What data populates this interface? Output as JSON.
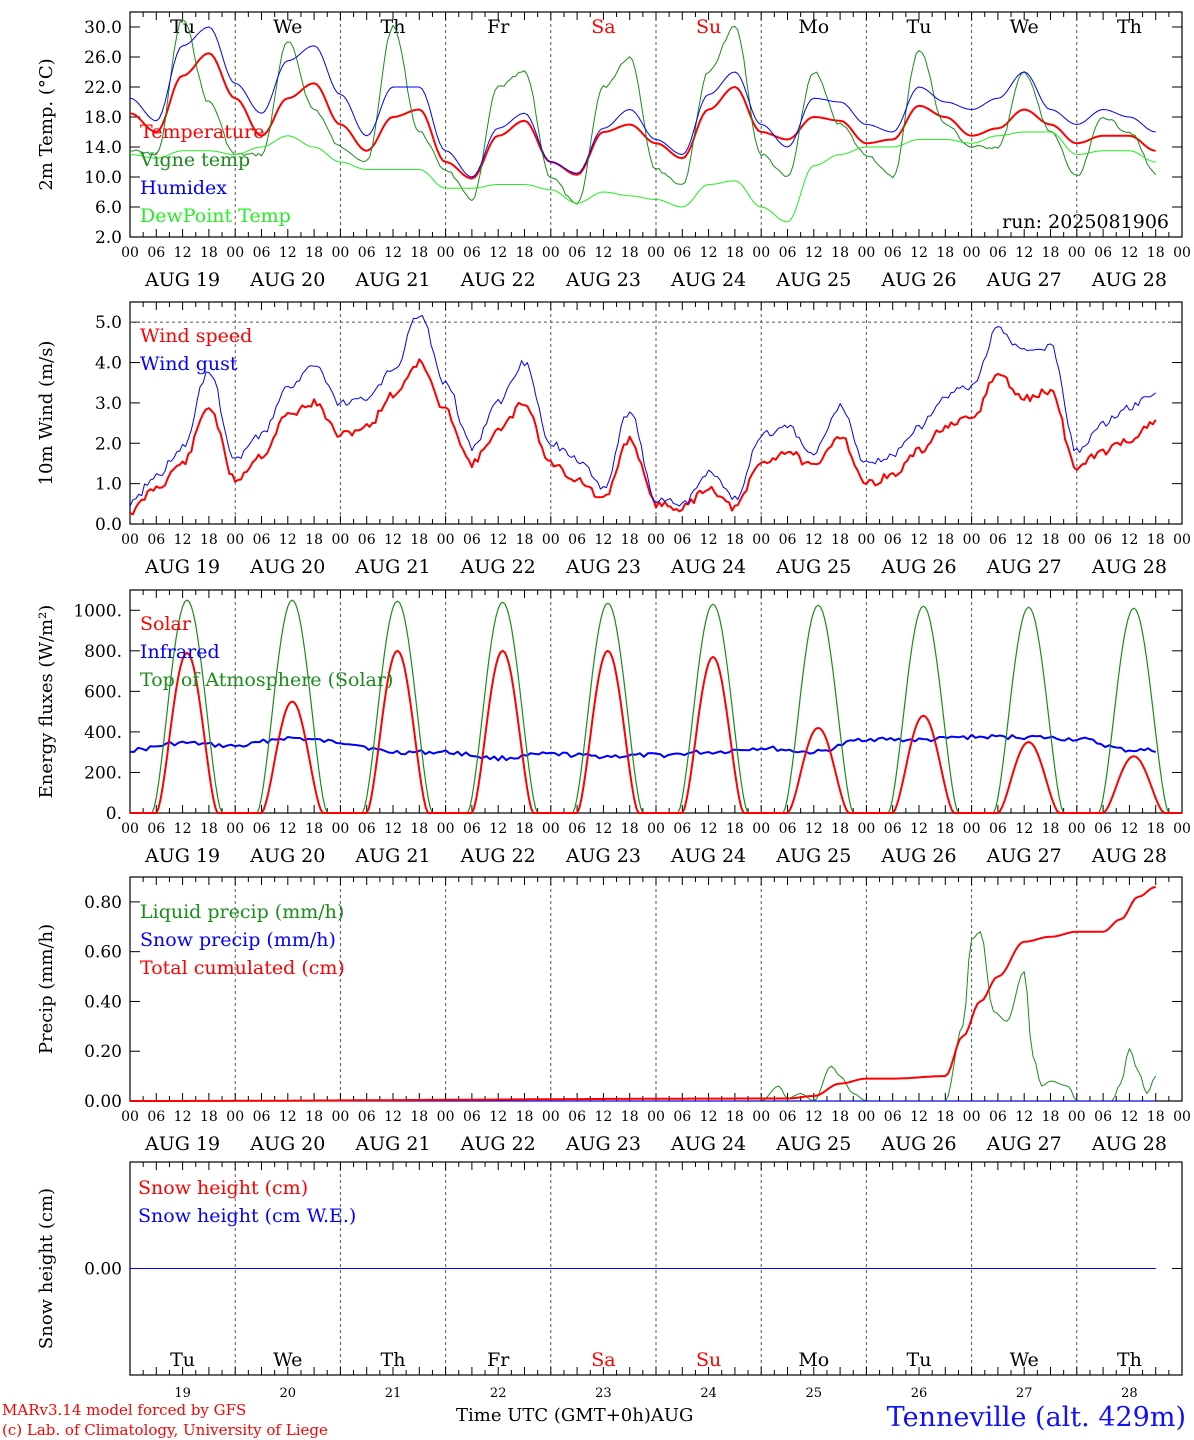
{
  "run": "run: 2025081906",
  "days": {
    "names": [
      "Tu",
      "We",
      "Th",
      "Fr",
      "Sa",
      "Su",
      "Mo",
      "Tu",
      "We",
      "Th"
    ],
    "name_colors": [
      "#000000",
      "#000000",
      "#000000",
      "#000000",
      "#ff0000",
      "#ff0000",
      "#000000",
      "#000000",
      "#000000",
      "#000000"
    ],
    "dates": [
      "AUG 19",
      "AUG 20",
      "AUG 21",
      "AUG 22",
      "AUG 23",
      "AUG 24",
      "AUG 25",
      "AUG 26",
      "AUG 27",
      "AUG 28"
    ],
    "numbers": [
      "19",
      "20",
      "21",
      "22",
      "23",
      "24",
      "25",
      "26",
      "27",
      "28"
    ],
    "hour_ticks": [
      "00",
      "06",
      "12",
      "18"
    ]
  },
  "footer": {
    "credit_line1": "MARv3.14 model forced by GFS",
    "credit_line2": "(c) Lab. of Climatology, University of Liege",
    "axis_title": "Time UTC (GMT+0h)",
    "month": "AUG",
    "station": "Tenneville (alt. 429m)"
  },
  "chart_data": [
    {
      "type": "line",
      "ylabel": "2m Temp. (°C)",
      "ylim": [
        2,
        32
      ],
      "ytick_labels": [
        "2.0",
        "6.0",
        "10.0",
        "14.0",
        "18.0",
        "22.0",
        "26.0",
        "30.0"
      ],
      "ytick_values": [
        2,
        6,
        10,
        14,
        18,
        22,
        26,
        30
      ],
      "x_unit": "hours since 2025-08-19 00 UTC",
      "series": [
        {
          "name": "Temperature",
          "color": "#ff0000",
          "width": 2,
          "x": [
            0,
            6,
            12,
            18,
            24,
            30,
            36,
            42,
            48,
            54,
            60,
            66,
            72,
            78,
            84,
            90,
            96,
            102,
            108,
            114,
            120,
            126,
            132,
            138,
            144,
            150,
            156,
            162,
            168,
            174,
            180,
            186,
            192,
            198,
            204,
            210,
            216,
            222,
            228,
            234
          ],
          "y": [
            18.5,
            16,
            23.5,
            26.5,
            20.5,
            15.5,
            20.5,
            22.5,
            17,
            13.5,
            18,
            19,
            12,
            9.8,
            15.5,
            17.5,
            12,
            10.3,
            16,
            17,
            14.5,
            12.5,
            19,
            22,
            16,
            15,
            18,
            17.5,
            14.5,
            15,
            19.5,
            18,
            15.5,
            16.5,
            19,
            17,
            14.5,
            15.5,
            15.5,
            13.5
          ]
        },
        {
          "name": "Vigne temp",
          "color": "#1a8c1a",
          "width": 1,
          "x": [
            0,
            6,
            12,
            18,
            24,
            30,
            36,
            42,
            48,
            54,
            60,
            66,
            72,
            78,
            84,
            90,
            96,
            102,
            108,
            114,
            120,
            126,
            132,
            138,
            144,
            150,
            156,
            162,
            168,
            174,
            180,
            186,
            192,
            198,
            204,
            210,
            216,
            222,
            228,
            234
          ],
          "y": [
            13.5,
            13,
            31,
            20,
            13,
            13,
            28,
            19,
            14,
            12,
            30,
            16,
            11,
            7,
            22,
            24,
            10,
            6.3,
            22,
            26,
            11,
            9,
            24,
            30,
            13,
            10,
            24,
            17,
            13,
            10,
            27,
            17,
            14,
            14,
            24,
            16,
            10,
            18,
            16,
            10.5
          ]
        },
        {
          "name": "Humidex",
          "color": "#0000ff",
          "width": 1,
          "x": [
            0,
            6,
            12,
            18,
            24,
            30,
            36,
            42,
            48,
            54,
            60,
            66,
            72,
            78,
            84,
            90,
            96,
            102,
            108,
            114,
            120,
            126,
            132,
            138,
            144,
            150,
            156,
            162,
            168,
            174,
            180,
            186,
            192,
            198,
            204,
            210,
            216,
            222,
            228,
            234
          ],
          "y": [
            20.5,
            17.5,
            27.5,
            30,
            22.5,
            18.5,
            25.5,
            27.5,
            21,
            15.5,
            22,
            22,
            13.5,
            10,
            16.5,
            18.5,
            12,
            10.5,
            16.5,
            19,
            15,
            13,
            21,
            24,
            17,
            14,
            20.5,
            20,
            17,
            16,
            22,
            20,
            19,
            20.5,
            24,
            19,
            17,
            19,
            18,
            16
          ]
        },
        {
          "name": "DewPoint Temp",
          "color": "#22ee22",
          "width": 1,
          "x": [
            0,
            6,
            12,
            18,
            24,
            30,
            36,
            42,
            48,
            54,
            60,
            66,
            72,
            78,
            84,
            90,
            96,
            102,
            108,
            114,
            120,
            126,
            132,
            138,
            144,
            150,
            156,
            162,
            168,
            174,
            180,
            186,
            192,
            198,
            204,
            210,
            216,
            222,
            228,
            234
          ],
          "y": [
            13,
            12.5,
            13.5,
            13.5,
            13,
            14,
            15.5,
            14,
            12,
            11,
            11,
            11,
            8.5,
            8.5,
            9,
            9,
            8.3,
            6.5,
            8,
            7.5,
            7,
            6,
            9,
            9.5,
            6,
            4,
            11.5,
            13,
            14,
            14,
            15,
            15,
            14.5,
            15.5,
            16,
            16,
            13,
            13.5,
            13.5,
            12
          ]
        }
      ]
    },
    {
      "type": "line",
      "ylabel": "10m Wind (m/s)",
      "ylim": [
        0,
        5.5
      ],
      "ytick_labels": [
        "0.0",
        "1.0",
        "2.0",
        "3.0",
        "4.0",
        "5.0"
      ],
      "ytick_values": [
        0,
        1,
        2,
        3,
        4,
        5
      ],
      "hline": 5,
      "x_unit": "hours since 2025-08-19 00 UTC",
      "series": [
        {
          "name": "Wind speed",
          "color": "#ff0000",
          "width": 2,
          "x": [
            0,
            6,
            12,
            18,
            24,
            30,
            36,
            42,
            48,
            54,
            60,
            66,
            72,
            78,
            84,
            90,
            96,
            102,
            108,
            114,
            120,
            126,
            132,
            138,
            144,
            150,
            156,
            162,
            168,
            174,
            180,
            186,
            192,
            198,
            204,
            210,
            216,
            222,
            228,
            234
          ],
          "y": [
            0.3,
            0.9,
            1.5,
            2.9,
            1.1,
            1.7,
            2.7,
            3,
            2.2,
            2.4,
            3.2,
            4,
            2.8,
            1.5,
            2.3,
            3,
            1.5,
            1.1,
            0.6,
            2.1,
            0.5,
            0.4,
            0.9,
            0.4,
            1.5,
            1.8,
            1.4,
            2.2,
            1,
            1.2,
            1.8,
            2.4,
            2.6,
            3.7,
            3.1,
            3.3,
            1.4,
            1.8,
            2.1,
            2.5
          ]
        },
        {
          "name": "Wind gust",
          "color": "#0000ff",
          "width": 1,
          "x": [
            0,
            6,
            12,
            18,
            24,
            30,
            36,
            42,
            48,
            54,
            60,
            66,
            72,
            78,
            84,
            90,
            96,
            102,
            108,
            114,
            120,
            126,
            132,
            138,
            144,
            150,
            156,
            162,
            168,
            174,
            180,
            186,
            192,
            198,
            204,
            210,
            216,
            222,
            228,
            234
          ],
          "y": [
            0.5,
            1.2,
            1.9,
            3.8,
            1.6,
            2.2,
            3.4,
            3.9,
            3,
            3.1,
            3.8,
            5.2,
            3.5,
            1.9,
            3,
            4,
            2,
            1.6,
            0.9,
            2.8,
            0.6,
            0.5,
            1.3,
            0.6,
            2.2,
            2.4,
            1.8,
            2.9,
            1.5,
            1.7,
            2.4,
            3.2,
            3.4,
            4.8,
            4.3,
            4.4,
            1.8,
            2.5,
            2.9,
            3.2
          ]
        }
      ]
    },
    {
      "type": "line",
      "ylabel": "Energy fluxes (W/m²)",
      "ylim": [
        0,
        1100
      ],
      "ytick_labels": [
        "0.",
        "200.",
        "400.",
        "600.",
        "800.",
        "1000."
      ],
      "ytick_values": [
        0,
        200,
        400,
        600,
        800,
        1000
      ],
      "x_unit": "hours since 2025-08-19 00 UTC",
      "solar_peaks": [
        790,
        550,
        800,
        800,
        800,
        770,
        420,
        480,
        350,
        280
      ],
      "toa_peaks": [
        1050,
        1050,
        1045,
        1040,
        1035,
        1030,
        1025,
        1020,
        1015,
        1010
      ],
      "infrared": {
        "x": [
          0,
          12,
          24,
          36,
          48,
          60,
          72,
          84,
          96,
          108,
          120,
          132,
          144,
          156,
          168,
          180,
          192,
          204,
          216,
          228,
          234
        ],
        "y": [
          310,
          345,
          330,
          370,
          350,
          300,
          300,
          270,
          290,
          280,
          285,
          300,
          320,
          300,
          365,
          360,
          375,
          375,
          365,
          310,
          310
        ]
      },
      "series": [
        {
          "name": "Solar",
          "color": "#ff0000",
          "width": 2
        },
        {
          "name": "Infrared",
          "color": "#0000ff",
          "width": 2
        },
        {
          "name": "Top of Atmosphere (Solar)",
          "color": "#1a8c1a",
          "width": 1
        }
      ]
    },
    {
      "type": "line",
      "ylabel": "Precip (mm/h)",
      "ylim": [
        0,
        0.9
      ],
      "ytick_labels": [
        "0.00",
        "0.20",
        "0.40",
        "0.60",
        "0.80"
      ],
      "ytick_values": [
        0,
        0.2,
        0.4,
        0.6,
        0.8
      ],
      "x_unit": "hours since 2025-08-19 00 UTC",
      "series": [
        {
          "name": "Liquid precip (mm/h)",
          "color": "#1a8c1a",
          "width": 1,
          "x": [
            0,
            144,
            148,
            150,
            153,
            156,
            160,
            162,
            165,
            168,
            176,
            186,
            190,
            192,
            194,
            197,
            200,
            204,
            206,
            208,
            210,
            214,
            216,
            224,
            226,
            228,
            230,
            232,
            234
          ],
          "y": [
            0,
            0,
            0.06,
            0.01,
            0.03,
            0,
            0.14,
            0.1,
            0.03,
            0,
            0,
            0,
            0.3,
            0.65,
            0.68,
            0.36,
            0.32,
            0.52,
            0.18,
            0.06,
            0.08,
            0.06,
            0,
            0,
            0.07,
            0.21,
            0.12,
            0.03,
            0.1
          ]
        },
        {
          "name": "Snow precip (mm/h)",
          "color": "#0000ff",
          "width": 1,
          "x": [
            0,
            234
          ],
          "y": [
            0,
            0
          ]
        },
        {
          "name": "Total cumulated (cm)",
          "color": "#ff0000",
          "width": 2,
          "x": [
            0,
            150,
            156,
            162,
            168,
            174,
            186,
            190,
            194,
            198,
            204,
            210,
            216,
            222,
            226,
            230,
            234
          ],
          "y": [
            0,
            0.01,
            0.02,
            0.07,
            0.09,
            0.09,
            0.1,
            0.26,
            0.4,
            0.5,
            0.64,
            0.66,
            0.68,
            0.68,
            0.73,
            0.82,
            0.86
          ]
        }
      ]
    },
    {
      "type": "line",
      "ylabel": "Snow height (cm)",
      "ylim": [
        -1,
        1
      ],
      "ytick_labels": [
        "0.00"
      ],
      "ytick_values": [
        0
      ],
      "x_unit": "hours since 2025-08-19 00 UTC",
      "series": [
        {
          "name": "Snow height (cm)",
          "color": "#ff0000",
          "width": 1,
          "x": [
            0,
            234
          ],
          "y": [
            0,
            0
          ]
        },
        {
          "name": "Snow height (cm W.E.)",
          "color": "#0000ff",
          "width": 1,
          "x": [
            0,
            234
          ],
          "y": [
            0,
            0
          ]
        }
      ]
    }
  ]
}
